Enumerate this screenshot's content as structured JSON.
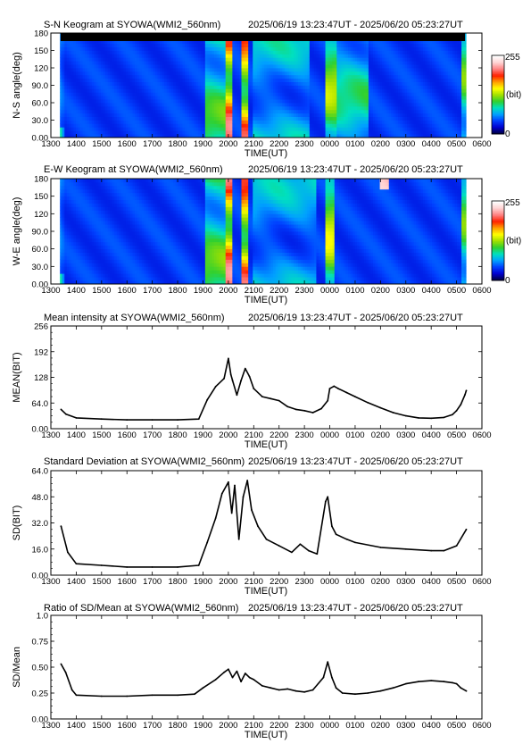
{
  "panels": [
    {
      "kind": "keogram",
      "title": "S-N Keogram at SYOWA(WMI2_560nm)",
      "period": "2025/06/19 13:23:47UT - 2025/06/20 05:23:27UT",
      "ylabel": "N-S angle(deg)",
      "xlabel": "TIME(UT)",
      "yticks": [
        "0.00",
        "30.0",
        "60.0",
        "90.0",
        "120",
        "150",
        "180"
      ],
      "colorbar": {
        "max_label": "255",
        "unit_label": "(bit)",
        "min_label": "0"
      }
    },
    {
      "kind": "keogram",
      "title": "E-W Keogram at SYOWA(WMI2_560nm)",
      "period": "2025/06/19 13:23:47UT - 2025/06/20 05:23:27UT",
      "ylabel": "W-E angle(deg)",
      "xlabel": "TIME(UT)",
      "yticks": [
        "0.00",
        "30.0",
        "60.0",
        "90.0",
        "120",
        "150",
        "180"
      ],
      "colorbar": {
        "max_label": "255",
        "unit_label": "(bit)",
        "min_label": "0"
      }
    },
    {
      "kind": "line",
      "title": "Mean intensity at SYOWA(WMI2_560nm)",
      "period": "2025/06/19 13:23:47UT - 2025/06/20 05:23:27UT",
      "ylabel": "MEAN(BIT)",
      "xlabel": "TIME(UT)",
      "yticks": [
        "0.00",
        "64.0",
        "128",
        "192",
        "256"
      ]
    },
    {
      "kind": "line",
      "title": "Standard Deviation at SYOWA(WMI2_560nm)",
      "period": "2025/06/19 13:23:47UT - 2025/06/20 05:23:27UT",
      "ylabel": "SD(BIT)",
      "xlabel": "TIME(UT)",
      "yticks": [
        "0.00",
        "16.0",
        "32.0",
        "48.0",
        "64.0"
      ]
    },
    {
      "kind": "line",
      "title": "Ratio of SD/Mean at SYOWA(WMI2_560nm)",
      "period": "2025/06/19 13:23:47UT - 2025/06/20 05:23:27UT",
      "ylabel": "SD/Mean",
      "xlabel": "TIME(UT)",
      "yticks": [
        "0.00",
        "0.25",
        "0.50",
        "0.75",
        "1.0"
      ]
    }
  ],
  "xticks": [
    "1300",
    "1400",
    "1500",
    "1600",
    "1700",
    "1800",
    "1900",
    "2000",
    "2100",
    "2200",
    "2300",
    "0000",
    "0100",
    "0200",
    "0300",
    "0400",
    "0500",
    "0600"
  ],
  "chart_data": [
    {
      "type": "heatmap",
      "title": "S-N Keogram at SYOWA(WMI2_560nm)",
      "xlabel": "TIME(UT)",
      "ylabel": "N-S angle(deg)",
      "xlim_hours_ut": [
        13,
        30
      ],
      "ylim": [
        0,
        180
      ],
      "colorscale": {
        "min": 0,
        "max": 255,
        "unit": "(bit)",
        "colors": [
          "#000040",
          "#0000d0",
          "#0040ff",
          "#00a0ff",
          "#00e0c0",
          "#30d030",
          "#a0e000",
          "#ffff00",
          "#ffa000",
          "#ff2000",
          "#ff8080",
          "#ffd0d0",
          "#ffffff"
        ]
      },
      "data_start_ut": "13:23:47",
      "data_end_ut": "05:23:27",
      "background_level_bit": 40,
      "features": [
        {
          "time_ut": "19:05-19:55",
          "level_bit": 115,
          "note": "green rise"
        },
        {
          "time_ut": "19:55-20:10",
          "level_bit": 215,
          "note": "bright arc, red/orange"
        },
        {
          "time_ut": "20:30-20:45",
          "level_bit": 200,
          "note": "bright arc, red"
        },
        {
          "time_ut": "21:00-23:10",
          "level_bit": 85,
          "note": "diffuse green/cyan"
        },
        {
          "time_ut": "23:50-00:15",
          "level_bit": 140,
          "note": "bright band"
        },
        {
          "time_ut": "00:15-01:30",
          "level_bit": 100,
          "note": "green"
        },
        {
          "time_ut": "03:30-04:30",
          "level_bit": 35,
          "note": "dark blue"
        },
        {
          "time_ut": "05:10-05:23",
          "level_bit": 120,
          "note": "dawn brightening"
        }
      ]
    },
    {
      "type": "heatmap",
      "title": "E-W Keogram at SYOWA(WMI2_560nm)",
      "xlabel": "TIME(UT)",
      "ylabel": "W-E angle(deg)",
      "xlim_hours_ut": [
        13,
        30
      ],
      "ylim": [
        0,
        180
      ],
      "colorscale": {
        "min": 0,
        "max": 255,
        "unit": "(bit)"
      },
      "data_start_ut": "13:23:47",
      "data_end_ut": "05:23:27",
      "background_level_bit": 40,
      "features": [
        {
          "time_ut": "19:05-19:55",
          "level_bit": 120,
          "note": "green"
        },
        {
          "time_ut": "19:55-20:10",
          "level_bit": 220,
          "note": "bright vertical band"
        },
        {
          "time_ut": "20:30-20:45",
          "level_bit": 205,
          "note": "bright vertical band"
        },
        {
          "time_ut": "21:00-23:30",
          "level_bit": 80,
          "note": "diffuse"
        },
        {
          "time_ut": "23:50-00:10",
          "level_bit": 150,
          "note": "bright band"
        },
        {
          "time_ut": "02:00-02:20",
          "level_bit": 230,
          "note": "bright spot near 180 deg"
        },
        {
          "time_ut": "05:10-05:23",
          "level_bit": 120,
          "note": "dawn brightening"
        }
      ]
    },
    {
      "type": "line",
      "title": "Mean intensity at SYOWA(WMI2_560nm)",
      "xlabel": "TIME(UT)",
      "ylabel": "MEAN(BIT)",
      "xlim_hours_ut": [
        13,
        30
      ],
      "ylim": [
        0,
        256
      ],
      "series": [
        {
          "x_ut": [
            "13:24",
            "13:36",
            "14:00",
            "15:00",
            "16:00",
            "17:00",
            "18:00",
            "18:50",
            "19:10",
            "19:30",
            "19:50",
            "20:00",
            "20:06",
            "20:10",
            "20:20",
            "20:30",
            "20:40",
            "20:50",
            "21:00",
            "21:20",
            "21:40",
            "22:00",
            "22:20",
            "22:40",
            "23:00",
            "23:20",
            "23:40",
            "23:55",
            "00:00",
            "00:10",
            "00:20",
            "00:40",
            "01:00",
            "01:30",
            "02:00",
            "02:30",
            "03:00",
            "03:30",
            "04:00",
            "04:30",
            "04:50",
            "05:00",
            "05:10",
            "05:20",
            "05:23"
          ],
          "values": [
            48,
            36,
            27,
            24,
            22,
            22,
            22,
            24,
            72,
            105,
            125,
            175,
            135,
            120,
            84,
            120,
            150,
            130,
            100,
            80,
            75,
            70,
            55,
            48,
            45,
            40,
            50,
            70,
            100,
            106,
            100,
            90,
            80,
            65,
            52,
            40,
            32,
            27,
            26,
            28,
            35,
            45,
            60,
            85,
            95
          ]
        }
      ]
    },
    {
      "type": "line",
      "title": "Standard Deviation at SYOWA(WMI2_560nm)",
      "xlabel": "TIME(UT)",
      "ylabel": "SD(BIT)",
      "xlim_hours_ut": [
        13,
        30
      ],
      "ylim": [
        0,
        64
      ],
      "series": [
        {
          "x_ut": [
            "13:24",
            "13:40",
            "14:00",
            "15:00",
            "16:00",
            "17:00",
            "18:00",
            "18:50",
            "19:10",
            "19:30",
            "19:45",
            "20:00",
            "20:08",
            "20:15",
            "20:25",
            "20:35",
            "20:45",
            "20:55",
            "21:10",
            "21:30",
            "22:00",
            "22:30",
            "22:50",
            "23:10",
            "23:30",
            "23:50",
            "23:55",
            "00:05",
            "00:15",
            "00:40",
            "01:00",
            "02:00",
            "03:00",
            "04:00",
            "04:30",
            "05:00",
            "05:23"
          ],
          "values": [
            30,
            14,
            7,
            6,
            5,
            5,
            5,
            6,
            20,
            35,
            50,
            57,
            38,
            55,
            22,
            48,
            58,
            40,
            30,
            22,
            18,
            14,
            19,
            15,
            13,
            45,
            48,
            30,
            25,
            22,
            20,
            17,
            16,
            15,
            15,
            18,
            28
          ]
        }
      ]
    },
    {
      "type": "line",
      "title": "Ratio of SD/Mean at SYOWA(WMI2_560nm)",
      "xlabel": "TIME(UT)",
      "ylabel": "SD/Mean",
      "xlim_hours_ut": [
        13,
        30
      ],
      "ylim": [
        0,
        1.0
      ],
      "series": [
        {
          "x_ut": [
            "13:24",
            "13:35",
            "13:50",
            "14:00",
            "15:00",
            "16:00",
            "17:00",
            "18:00",
            "18:40",
            "19:00",
            "19:30",
            "19:50",
            "20:00",
            "20:10",
            "20:20",
            "20:30",
            "20:40",
            "20:50",
            "21:00",
            "21:20",
            "21:40",
            "22:00",
            "22:20",
            "22:40",
            "23:00",
            "23:20",
            "23:45",
            "23:55",
            "00:05",
            "00:15",
            "00:30",
            "01:00",
            "01:30",
            "02:00",
            "02:30",
            "03:00",
            "03:30",
            "04:00",
            "04:30",
            "04:50",
            "05:00",
            "05:10",
            "05:23"
          ],
          "values": [
            0.53,
            0.45,
            0.28,
            0.23,
            0.22,
            0.22,
            0.23,
            0.23,
            0.24,
            0.3,
            0.38,
            0.45,
            0.48,
            0.4,
            0.46,
            0.36,
            0.44,
            0.4,
            0.38,
            0.32,
            0.3,
            0.28,
            0.29,
            0.27,
            0.26,
            0.28,
            0.4,
            0.55,
            0.4,
            0.3,
            0.25,
            0.24,
            0.25,
            0.27,
            0.3,
            0.34,
            0.36,
            0.37,
            0.36,
            0.35,
            0.34,
            0.3,
            0.27
          ]
        }
      ]
    }
  ]
}
